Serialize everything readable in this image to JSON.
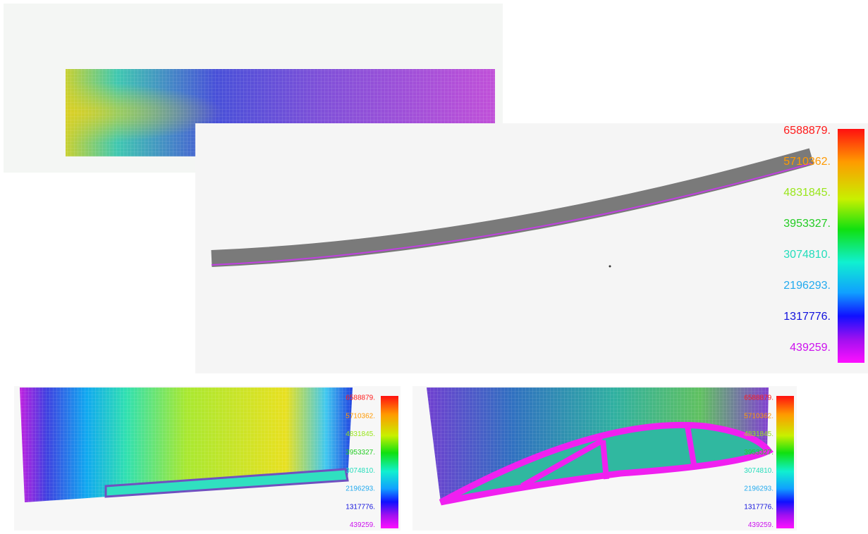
{
  "legends": [
    {
      "labels": [
        "6588879.",
        "5710362.",
        "4831845.",
        "3953327.",
        "3074810.",
        "2196293.",
        "1317776.",
        "439259."
      ],
      "colors": [
        "#ff1a1a",
        "#ff9900",
        "#99e61a",
        "#22cc22",
        "#22ddbb",
        "#22aaee",
        "#1111dd",
        "#cc11ee"
      ]
    },
    {
      "labels": [
        "6588879.",
        "5710362.",
        "4831845.",
        "3953327.",
        "3074810.",
        "2196293.",
        "1317776.",
        "439259."
      ],
      "colors": [
        "#ff1a1a",
        "#ff9900",
        "#99e61a",
        "#22cc22",
        "#22ddbb",
        "#22aaee",
        "#1111dd",
        "#cc11ee"
      ]
    },
    {
      "labels": [
        "6588879.",
        "5710362.",
        "4831845.",
        "3953327.",
        "3074810.",
        "2196293.",
        "1317776.",
        "439259."
      ],
      "colors": [
        "#ff1a1a",
        "#ff9900",
        "#99e61a",
        "#22cc22",
        "#22ddbb",
        "#22aaee",
        "#1111dd",
        "#cc11ee"
      ]
    }
  ]
}
